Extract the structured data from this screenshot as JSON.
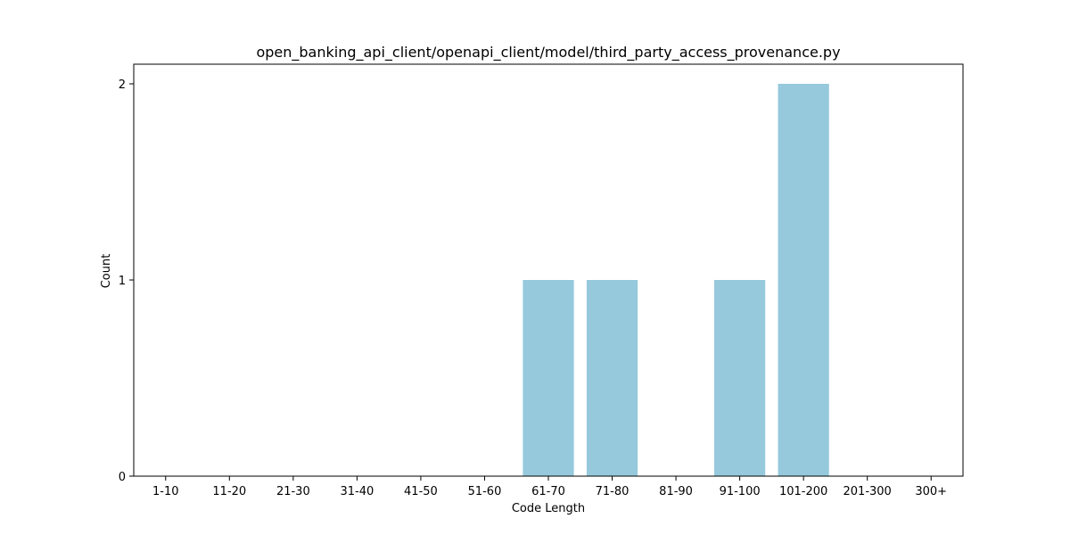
{
  "chart_data": {
    "type": "bar",
    "title": "open_banking_api_client/openapi_client/model/third_party_access_provenance.py",
    "xlabel": "Code Length",
    "ylabel": "Count",
    "categories": [
      "1-10",
      "11-20",
      "21-30",
      "31-40",
      "41-50",
      "51-60",
      "61-70",
      "71-80",
      "81-90",
      "91-100",
      "101-200",
      "201-300",
      "300+"
    ],
    "values": [
      0,
      0,
      0,
      0,
      0,
      0,
      1,
      1,
      0,
      1,
      2,
      0,
      0
    ],
    "ylim": [
      0,
      2.1
    ],
    "yticks": [
      0,
      1,
      2
    ],
    "bar_color": "#96c9dc",
    "grid": false,
    "legend": "none"
  }
}
